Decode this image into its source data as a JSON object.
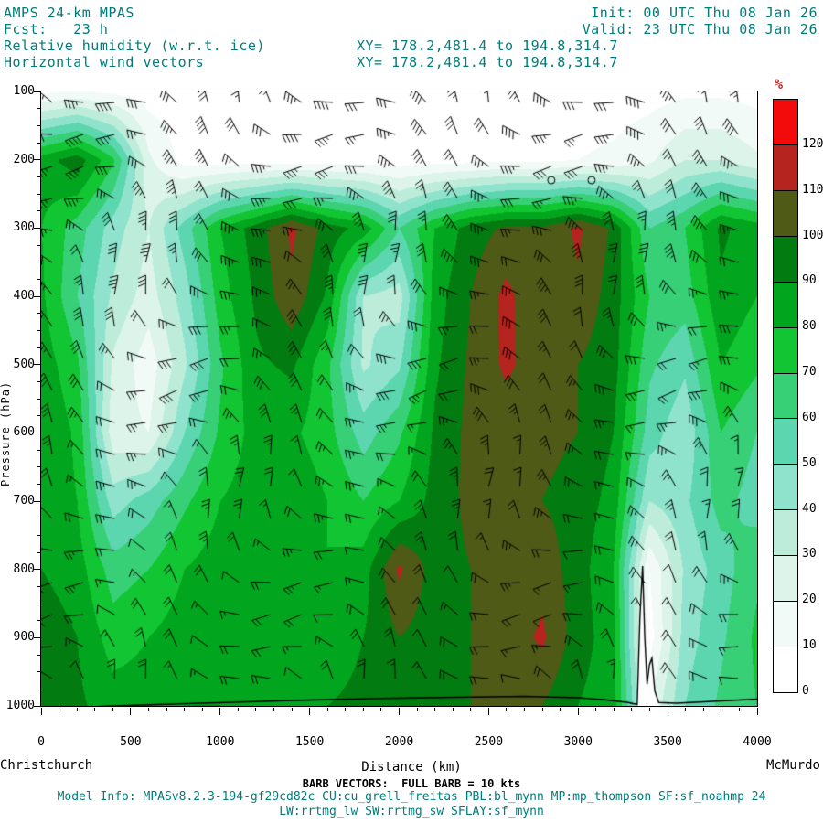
{
  "header": {
    "model_title": "AMPS 24-km MPAS",
    "init_label": "Init: 00 UTC Thu 08 Jan 26",
    "fcst_label": "Fcst:   23 h",
    "valid_label": "Valid: 23 UTC Thu 08 Jan 26",
    "field_label": "Relative humidity (w.r.t. ice)",
    "vector_label": "Horizontal wind vectors",
    "xy_range_1": "XY= 178.2,481.4 to 194.8,314.7",
    "xy_range_2": "XY= 178.2,481.4 to 194.8,314.7"
  },
  "axes": {
    "ylabel": "Pressure (hPa)",
    "xlabel": "Distance (km)",
    "y_ticks": [
      "100",
      "200",
      "300",
      "400",
      "500",
      "600",
      "700",
      "800",
      "900",
      "1000"
    ],
    "x_ticks": [
      "0",
      "500",
      "1000",
      "1500",
      "2000",
      "2500",
      "3000",
      "3500",
      "4000"
    ]
  },
  "colorbar": {
    "unit": "%",
    "tick_labels": [
      "120",
      "110",
      "100",
      "90",
      "80",
      "70",
      "60",
      "50",
      "40",
      "30",
      "20",
      "10",
      "0"
    ]
  },
  "footer": {
    "left_station": "Christchurch",
    "right_station": "McMurdo",
    "xlabel": "Distance (km)",
    "barb_note": "BARB VECTORS:  FULL BARB = 10 kts",
    "model_info": "Model Info: MPASv8.2.3-194-gf29cd82c CU:cu_grell_freitas PBL:bl_mynn MP:mp_thompson SF:sf_noahmp 24",
    "physics_info": "LW:rrtmg_lw SW:rrtmg_sw SFLAY:sf_mynn"
  },
  "chart_data": {
    "type": "heatmap",
    "title": "Relative humidity (w.r.t. ice) with horizontal wind vectors, vertical cross-section Christchurch to McMurdo",
    "endpoints": {
      "left": "Christchurch",
      "right": "McMurdo"
    },
    "x_range_km": [
      0,
      4000
    ],
    "pressure_range_hpa": [
      100,
      1000
    ],
    "grid_order": "rows are pressure levels from 100 hPa (top) to 1000 hPa (bottom); columns are distance 0 to 4000 km",
    "x_km": [
      0,
      200,
      400,
      600,
      800,
      1000,
      1200,
      1400,
      1600,
      1800,
      2000,
      2200,
      2400,
      2600,
      2800,
      3000,
      3200,
      3400,
      3600,
      3800,
      4000
    ],
    "pressure_hpa": [
      100,
      200,
      300,
      400,
      500,
      600,
      700,
      800,
      900,
      1000
    ],
    "rh_percent": [
      [
        8,
        12,
        8,
        5,
        4,
        4,
        4,
        4,
        4,
        4,
        4,
        4,
        4,
        4,
        4,
        4,
        5,
        6,
        8,
        8,
        6
      ],
      [
        85,
        96,
        72,
        22,
        6,
        5,
        5,
        5,
        5,
        5,
        5,
        6,
        6,
        8,
        8,
        10,
        12,
        18,
        30,
        30,
        22
      ],
      [
        80,
        65,
        45,
        30,
        55,
        80,
        95,
        112,
        96,
        86,
        60,
        80,
        95,
        102,
        102,
        112,
        98,
        60,
        70,
        92,
        85
      ],
      [
        82,
        60,
        38,
        25,
        45,
        75,
        92,
        108,
        88,
        40,
        35,
        85,
        100,
        113,
        100,
        108,
        95,
        70,
        65,
        88,
        80
      ],
      [
        86,
        72,
        28,
        14,
        38,
        68,
        88,
        92,
        72,
        38,
        48,
        88,
        102,
        112,
        104,
        100,
        94,
        62,
        52,
        80,
        72
      ],
      [
        90,
        78,
        24,
        20,
        50,
        72,
        84,
        82,
        74,
        55,
        68,
        92,
        103,
        104,
        103,
        100,
        90,
        55,
        42,
        70,
        60
      ],
      [
        86,
        80,
        45,
        55,
        68,
        80,
        85,
        88,
        80,
        70,
        80,
        94,
        103,
        104,
        100,
        96,
        86,
        40,
        48,
        64,
        55
      ],
      [
        90,
        85,
        65,
        70,
        80,
        85,
        90,
        85,
        80,
        85,
        112,
        95,
        100,
        100,
        106,
        95,
        80,
        10,
        42,
        55,
        68
      ],
      [
        96,
        90,
        75,
        80,
        85,
        90,
        90,
        85,
        85,
        90,
        100,
        95,
        100,
        104,
        112,
        95,
        84,
        5,
        45,
        58,
        72
      ],
      [
        98,
        92,
        85,
        85,
        90,
        90,
        86,
        85,
        90,
        92,
        95,
        96,
        100,
        102,
        100,
        90,
        84,
        20,
        50,
        62,
        70
      ]
    ],
    "contour_levels_percent": [
      0,
      10,
      20,
      30,
      40,
      50,
      60,
      70,
      80,
      90,
      100,
      110,
      120
    ],
    "palette": [
      "#ffffff",
      "#f2faf7",
      "#dcf4ea",
      "#bdedda",
      "#8fe3cc",
      "#5cd6ae",
      "#37d077",
      "#12c532",
      "#02a61e",
      "#027c10",
      "#4e5a16",
      "#b5241e",
      "#f30b0b"
    ],
    "terrain_profile_km_hpa": [
      [
        0,
        1004
      ],
      [
        400,
        1000
      ],
      [
        900,
        996
      ],
      [
        1400,
        992
      ],
      [
        1900,
        989
      ],
      [
        2400,
        987
      ],
      [
        2700,
        986
      ],
      [
        3000,
        988
      ],
      [
        3150,
        991
      ],
      [
        3280,
        995
      ],
      [
        3330,
        998
      ],
      [
        3345,
        870
      ],
      [
        3360,
        795
      ],
      [
        3372,
        900
      ],
      [
        3385,
        968
      ],
      [
        3398,
        940
      ],
      [
        3412,
        930
      ],
      [
        3428,
        978
      ],
      [
        3450,
        995
      ],
      [
        3550,
        996
      ],
      [
        3700,
        994
      ],
      [
        3850,
        992
      ],
      [
        4000,
        990
      ]
    ],
    "calm_markers_km_hpa": [
      [
        2850,
        230
      ],
      [
        3075,
        230
      ]
    ],
    "wind_barbs": {
      "full_barb_kts": 10,
      "half_barb_kts": 5,
      "layout": "regular grid of barbs over the whole section",
      "typical_direction": "westerly to northwesterly, staffs slanting up-left",
      "typical_speed_kts_range": [
        5,
        40
      ]
    },
    "legend_position": "right vertical colorbar, % relative humidity"
  }
}
